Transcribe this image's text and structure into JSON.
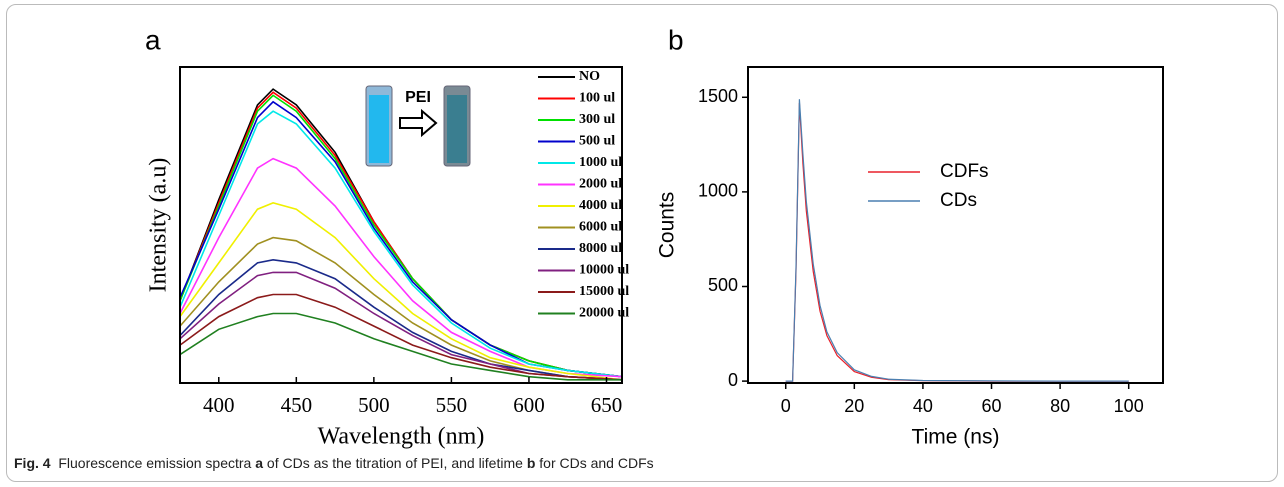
{
  "chart_data": [
    {
      "type": "line",
      "panel_label": "a",
      "x_label": "Wavelength (nm)",
      "y_label": "Intensity (a.u)",
      "annotation": "PEI",
      "x": [
        375,
        400,
        425,
        435,
        450,
        475,
        500,
        525,
        550,
        575,
        600,
        625,
        660
      ],
      "xlim": [
        375,
        660
      ],
      "xticks": [
        400,
        450,
        500,
        550,
        600,
        650
      ],
      "ylim": [
        0,
        100
      ],
      "series": [
        {
          "name": "NO",
          "color": "#000000",
          "values": [
            26,
            58,
            88,
            93,
            88,
            73,
            51,
            33,
            20,
            12,
            7,
            4,
            2
          ]
        },
        {
          "name": "100 ul",
          "color": "#ff0000",
          "values": [
            26,
            57,
            87,
            92,
            87,
            72,
            51,
            33,
            20,
            12,
            7,
            4,
            2
          ]
        },
        {
          "name": "300 ul",
          "color": "#00e000",
          "values": [
            26,
            56,
            86,
            91,
            86,
            71,
            50,
            33,
            20,
            12,
            7,
            4,
            2
          ]
        },
        {
          "name": "500 ul",
          "color": "#0000cc",
          "values": [
            27,
            55,
            84,
            89,
            84,
            70,
            49,
            32,
            20,
            12,
            6,
            4,
            2
          ]
        },
        {
          "name": "1000 ul",
          "color": "#00e8e8",
          "values": [
            24,
            53,
            82,
            86,
            82,
            68,
            48,
            31,
            19,
            11,
            6,
            4,
            2
          ]
        },
        {
          "name": "2000 ul",
          "color": "#ff33ff",
          "values": [
            22,
            46,
            68,
            71,
            68,
            56,
            40,
            26,
            16,
            10,
            5,
            3,
            2
          ]
        },
        {
          "name": "4000 ul",
          "color": "#f0f000",
          "values": [
            21,
            38,
            55,
            57,
            55,
            46,
            33,
            22,
            14,
            8,
            5,
            3,
            1
          ]
        },
        {
          "name": "6000 ul",
          "color": "#a09020",
          "values": [
            18,
            32,
            44,
            46,
            45,
            38,
            28,
            19,
            12,
            7,
            4,
            2,
            1
          ]
        },
        {
          "name": "8000 ul",
          "color": "#1a2a8a",
          "values": [
            15,
            28,
            38,
            39,
            38,
            33,
            24,
            16,
            10,
            6,
            4,
            2,
            1
          ]
        },
        {
          "name": "10000 ul",
          "color": "#802080",
          "values": [
            14,
            25,
            34,
            35,
            35,
            30,
            22,
            15,
            9,
            6,
            3,
            2,
            1
          ]
        },
        {
          "name": "15000 ul",
          "color": "#8b1a1a",
          "values": [
            12,
            21,
            27,
            28,
            28,
            24,
            18,
            12,
            8,
            5,
            3,
            2,
            1
          ]
        },
        {
          "name": "20000 ul",
          "color": "#208020",
          "values": [
            9,
            17,
            21,
            22,
            22,
            19,
            14,
            10,
            6,
            4,
            2,
            1,
            1
          ]
        }
      ]
    },
    {
      "type": "line",
      "panel_label": "b",
      "x_label": "Time (ns)",
      "y_label": "Counts",
      "x": [
        0,
        2,
        3,
        4,
        5,
        6,
        8,
        10,
        12,
        15,
        20,
        25,
        30,
        40,
        60,
        80,
        100
      ],
      "xlim": [
        -11,
        110
      ],
      "xticks": [
        0,
        20,
        40,
        60,
        80,
        100
      ],
      "ylim": [
        -10,
        1660
      ],
      "yticks": [
        0,
        500,
        1000,
        1500
      ],
      "series": [
        {
          "name": "CDFs",
          "color": "#e8212b",
          "values": [
            0,
            0,
            580,
            1470,
            1150,
            900,
            580,
            370,
            240,
            135,
            50,
            20,
            8,
            2,
            0,
            0,
            0
          ]
        },
        {
          "name": "CDs",
          "color": "#4a7fb0",
          "values": [
            0,
            0,
            600,
            1490,
            1200,
            950,
            620,
            400,
            260,
            150,
            60,
            25,
            10,
            3,
            1,
            0,
            0
          ]
        }
      ]
    }
  ],
  "caption": [
    "Fig. 4",
    "Fluorescence emission spectra",
    "a",
    "of CDs as the titration of PEI, and lifetime",
    "b",
    "for CDs and CDFs"
  ]
}
